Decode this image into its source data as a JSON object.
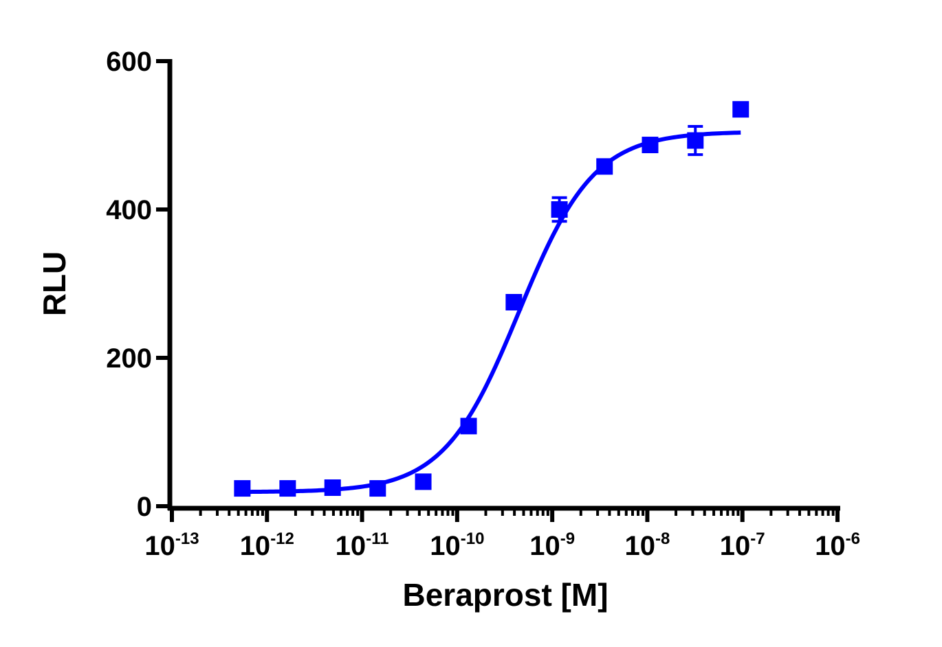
{
  "chart_data": {
    "type": "scatter",
    "xlabel": "Beraprost [M]",
    "ylabel": "RLU",
    "x_scale": "log10",
    "xlim": [
      1e-13,
      1e-06
    ],
    "ylim": [
      0,
      600
    ],
    "grid": false,
    "legend": "none",
    "x_tick_base": "10",
    "x_ticks": [
      {
        "value": 1e-13,
        "base": "10",
        "exp": "-13"
      },
      {
        "value": 1e-12,
        "base": "10",
        "exp": "-12"
      },
      {
        "value": 1e-11,
        "base": "10",
        "exp": "-11"
      },
      {
        "value": 1e-10,
        "base": "10",
        "exp": "-10"
      },
      {
        "value": 1e-09,
        "base": "10",
        "exp": "-9"
      },
      {
        "value": 1e-08,
        "base": "10",
        "exp": "-8"
      },
      {
        "value": 1e-07,
        "base": "10",
        "exp": "-7"
      },
      {
        "value": 1e-06,
        "base": "10",
        "exp": "-6"
      }
    ],
    "y_ticks": [
      {
        "value": 0,
        "label": "0"
      },
      {
        "value": 200,
        "label": "200"
      },
      {
        "value": 400,
        "label": "400"
      },
      {
        "value": 600,
        "label": "600"
      }
    ],
    "series": [
      {
        "color": "#0000ff",
        "marker": "square",
        "points": [
          {
            "x": 5.5e-13,
            "y": 24,
            "err": 3
          },
          {
            "x": 1.65e-12,
            "y": 24,
            "err": 3
          },
          {
            "x": 4.9e-12,
            "y": 25,
            "err": 3
          },
          {
            "x": 1.46e-11,
            "y": 24,
            "err": 3
          },
          {
            "x": 4.4e-11,
            "y": 33,
            "err": 4
          },
          {
            "x": 1.32e-10,
            "y": 108,
            "err": 5
          },
          {
            "x": 3.95e-10,
            "y": 275,
            "err": 5
          },
          {
            "x": 1.19e-09,
            "y": 400,
            "err": 16
          },
          {
            "x": 3.55e-09,
            "y": 458,
            "err": 8
          },
          {
            "x": 1.07e-08,
            "y": 487,
            "err": 5
          },
          {
            "x": 3.2e-08,
            "y": 493,
            "err": 19
          },
          {
            "x": 9.6e-08,
            "y": 535,
            "err": 3
          }
        ],
        "fit": {
          "model": "four-parameter logistic",
          "bottom": 19,
          "top": 505,
          "logEC50": -9.35,
          "hill": 1.1,
          "x_range": [
            5.5e-13,
            9.6e-08
          ]
        }
      }
    ]
  }
}
